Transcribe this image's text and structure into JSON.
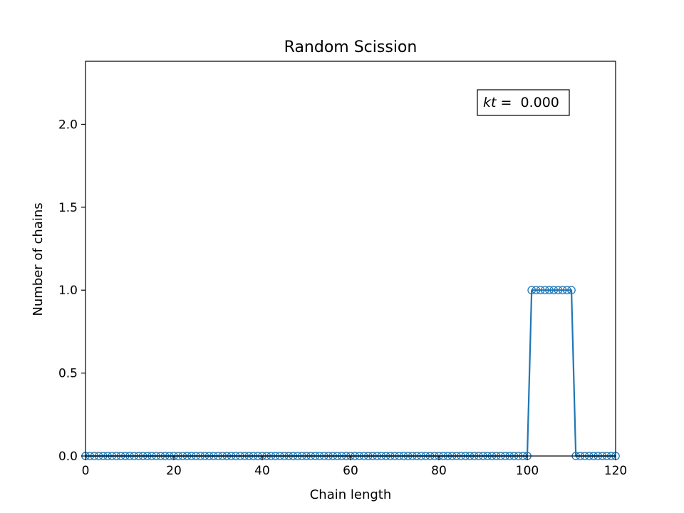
{
  "chart_data": {
    "type": "line",
    "title": "Random Scission",
    "xlabel": "Chain length",
    "ylabel": "Number of chains",
    "xlim": [
      0,
      120
    ],
    "ylim": [
      0,
      2.38
    ],
    "xticks": [
      0,
      20,
      40,
      60,
      80,
      100,
      120
    ],
    "yticks": [
      0.0,
      0.5,
      1.0,
      1.5,
      2.0
    ],
    "ytick_labels": [
      "0.0",
      "0.5",
      "1.0",
      "1.5",
      "2.0"
    ],
    "grid": false,
    "legend": null,
    "series": [
      {
        "color": "#1f77b4",
        "marker": "open-circle",
        "x_start": 0,
        "x_end": 120,
        "x_step": 1,
        "segments": [
          {
            "from": 0,
            "to": 100,
            "value": 0
          },
          {
            "from": 101,
            "to": 110,
            "value": 1
          },
          {
            "from": 111,
            "to": 120,
            "value": 0
          }
        ]
      }
    ],
    "annotation": {
      "label_italic": "kt",
      "label_rest": " =  0.000",
      "position": "top-right"
    }
  }
}
